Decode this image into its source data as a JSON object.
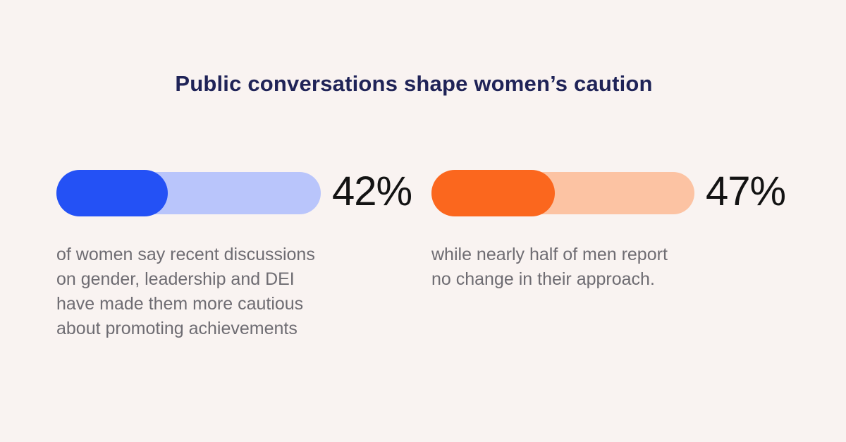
{
  "page": {
    "background": "#f9f3f1"
  },
  "chart_data": {
    "type": "bar",
    "orientation": "horizontal",
    "title": "Public conversations shape women’s caution",
    "title_color": "#1f2357",
    "value_label_color": "#131313",
    "caption_color": "#6e6c72",
    "max": 100,
    "grid": false,
    "legend": false,
    "series": [
      {
        "name": "Women",
        "value": 42,
        "value_label": "42%",
        "fill_color": "#2451f5",
        "track_color": "#b9c5fb",
        "caption": "of women say recent discussions\non gender, leadership and DEI\nhave made them more cautious\nabout promoting achievements"
      },
      {
        "name": "Men",
        "value": 47,
        "value_label": "47%",
        "fill_color": "#fb671e",
        "track_color": "#fcc3a3",
        "caption": "while nearly half of men report\nno change in their approach."
      }
    ]
  }
}
